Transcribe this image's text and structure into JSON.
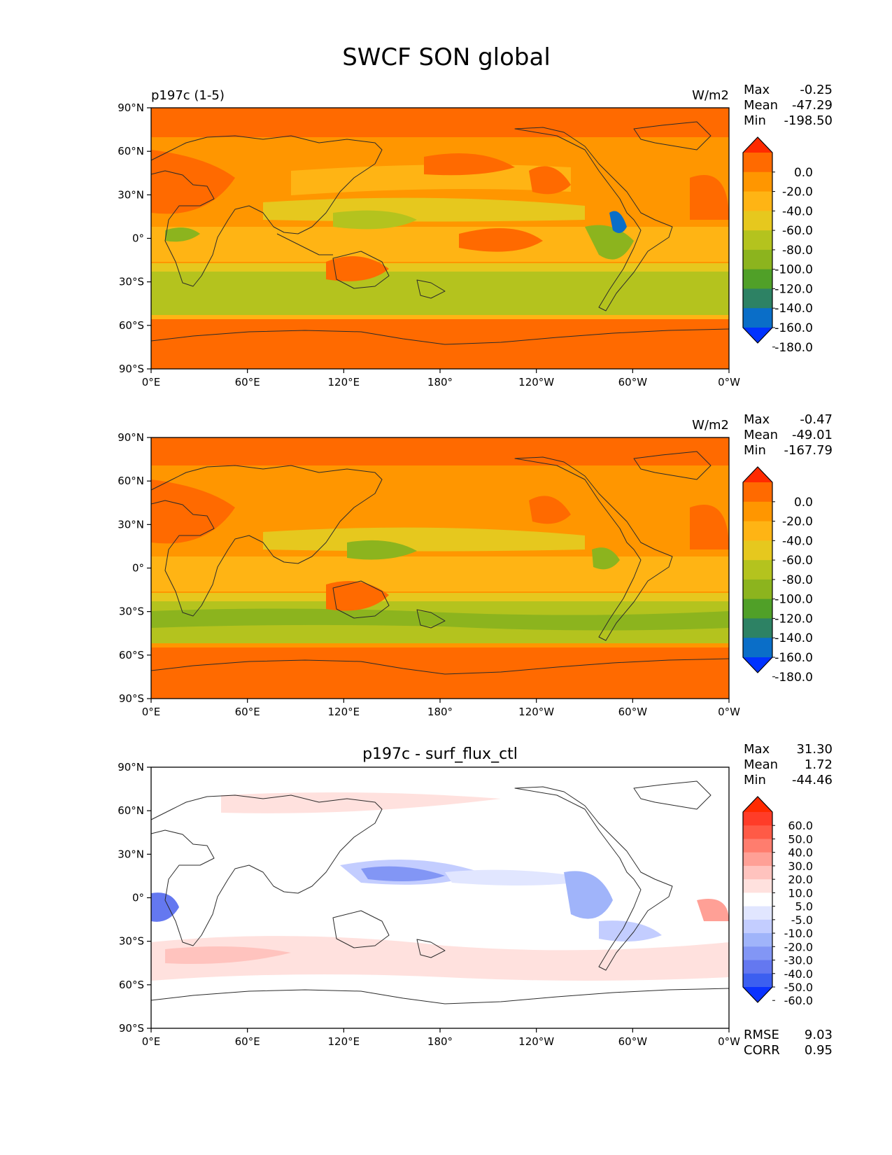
{
  "title": "SWCF SON global",
  "xticks": [
    "0°E",
    "60°E",
    "120°E",
    "180°",
    "120°W",
    "60°W",
    "0°W"
  ],
  "yticks": [
    "90°N",
    "60°N",
    "30°N",
    "0°",
    "30°S",
    "60°S",
    "90°S"
  ],
  "stat_labels": {
    "max": "Max",
    "mean": "Mean",
    "min": "Min",
    "rmse": "RMSE",
    "corr": "CORR"
  },
  "panels": [
    {
      "title": "",
      "left_label": "p197c (1-5)",
      "units": "W/m2",
      "stats": {
        "max": "-0.25",
        "mean": "-47.29",
        "min": "-198.50"
      },
      "colorbar": {
        "labels": [
          "0.0",
          "-20.0",
          "-40.0",
          "-60.0",
          "-80.0",
          "-100.0",
          "-120.0",
          "-140.0",
          "-160.0",
          "-180.0"
        ],
        "colors": [
          "#ff2a00",
          "#ff6a00",
          "#ff9600",
          "#ffb414",
          "#e6c81e",
          "#b4c31e",
          "#8cb41e",
          "#50a028",
          "#2d8264",
          "#0a6ec8",
          "#0032ff"
        ]
      }
    },
    {
      "title": "",
      "left_label": "",
      "units": "W/m2",
      "stats": {
        "max": "-0.47",
        "mean": "-49.01",
        "min": "-167.79"
      },
      "colorbar": {
        "labels": [
          "0.0",
          "-20.0",
          "-40.0",
          "-60.0",
          "-80.0",
          "-100.0",
          "-120.0",
          "-140.0",
          "-160.0",
          "-180.0"
        ],
        "colors": [
          "#ff2a00",
          "#ff6a00",
          "#ff9600",
          "#ffb414",
          "#e6c81e",
          "#b4c31e",
          "#8cb41e",
          "#50a028",
          "#2d8264",
          "#0a6ec8",
          "#0032ff"
        ]
      }
    },
    {
      "title": "p197c - surf_flux_ctl",
      "left_label": "",
      "units": "",
      "stats": {
        "max": "31.30",
        "mean": "1.72",
        "min": "-44.46",
        "rmse": "9.03",
        "corr": "0.95"
      },
      "colorbar": {
        "labels": [
          "60.0",
          "50.0",
          "40.0",
          "30.0",
          "20.0",
          "10.0",
          "5.0",
          "-5.0",
          "-10.0",
          "-20.0",
          "-30.0",
          "-40.0",
          "-50.0",
          "-60.0"
        ],
        "colors": [
          "#ff2a00",
          "#ff3c28",
          "#ff5a46",
          "#ff7d6e",
          "#ffa096",
          "#ffc3be",
          "#ffe1de",
          "#ffffff",
          "#e1e6ff",
          "#c3cdff",
          "#a0b4fa",
          "#8296f5",
          "#6478f0",
          "#3c5ff0",
          "#0a32ff"
        ]
      }
    }
  ]
}
